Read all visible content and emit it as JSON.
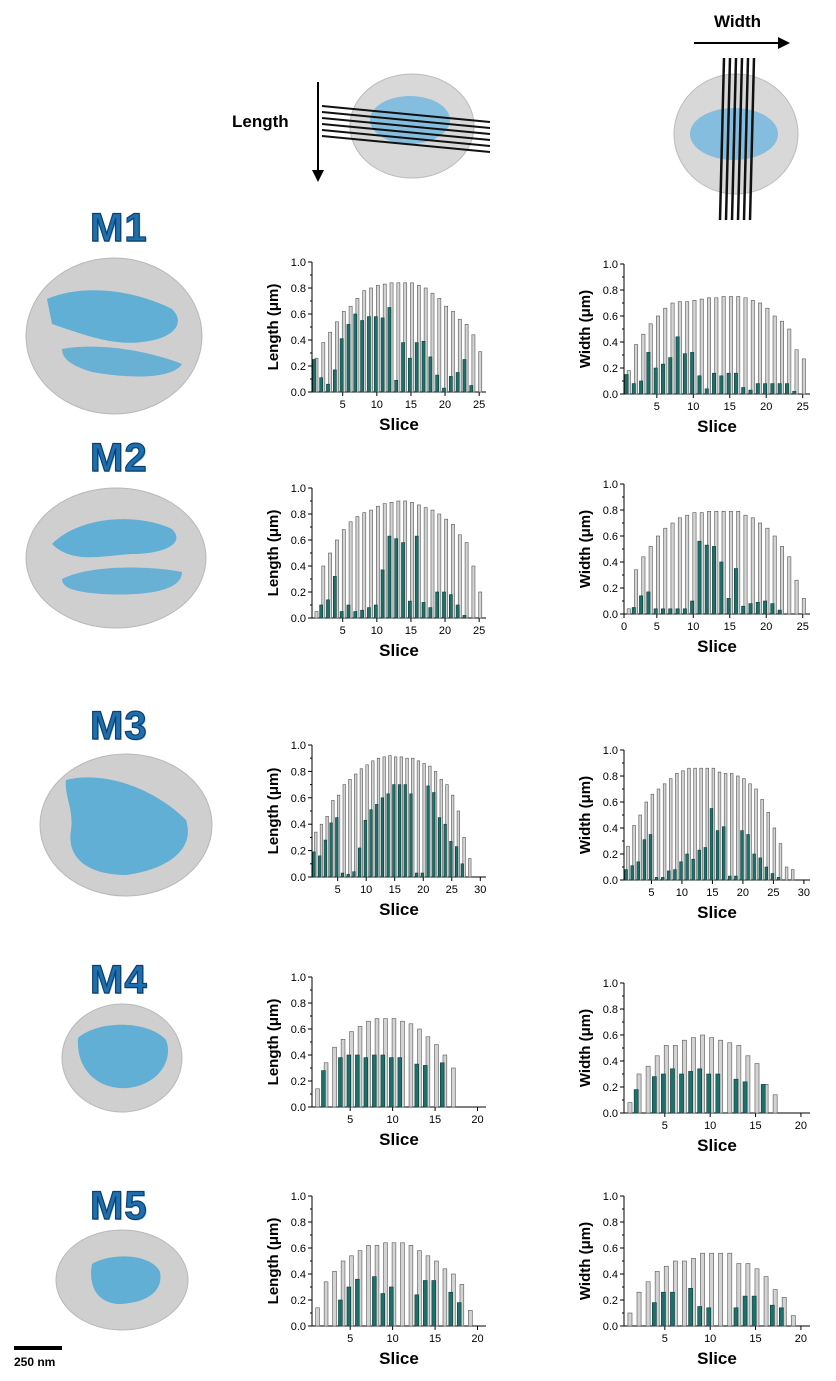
{
  "header": {
    "length_label": "Length",
    "width_label": "Width"
  },
  "rows": [
    {
      "label": "M1"
    },
    {
      "label": "M2"
    },
    {
      "label": "M3"
    },
    {
      "label": "M4"
    },
    {
      "label": "M5"
    }
  ],
  "scale_bar": {
    "label": "250 nm"
  },
  "colors": {
    "total_bar": "#d3d3d3",
    "blue_bar": "#1f6f6a",
    "cell": "#c8c8c8",
    "dna": "#4ea9d6"
  },
  "chart_data": [
    {
      "id": "M1-length",
      "type": "bar",
      "xlabel": "Slice",
      "ylabel": "Length (μm)",
      "ylim": [
        0,
        1.0
      ],
      "yticks": [
        "0.0",
        "0.2",
        "0.4",
        "0.6",
        "0.8",
        "1.0"
      ],
      "xticks": [
        5,
        10,
        15,
        20,
        25
      ],
      "xmax": 25,
      "series": [
        {
          "values": [
            0.26,
            0.38,
            0.46,
            0.54,
            0.62,
            0.66,
            0.72,
            0.78,
            0.8,
            0.82,
            0.83,
            0.84,
            0.84,
            0.84,
            0.84,
            0.82,
            0.8,
            0.76,
            0.72,
            0.66,
            0.62,
            0.56,
            0.52,
            0.44,
            0.31
          ]
        },
        {
          "values": [
            0.25,
            0.11,
            0.06,
            0.17,
            0.41,
            0.52,
            0.6,
            0.55,
            0.58,
            0.58,
            0.57,
            0.65,
            0.09,
            0.38,
            0.26,
            0.38,
            0.39,
            0.27,
            0.13,
            0.03,
            0.12,
            0.15,
            0.25,
            0.05,
            0
          ]
        }
      ]
    },
    {
      "id": "M1-width",
      "type": "bar",
      "xlabel": "Slice",
      "ylabel": "Width (μm)",
      "ylim": [
        0,
        1.0
      ],
      "yticks": [
        "0.0",
        "0.2",
        "0.4",
        "0.6",
        "0.8",
        "1.0"
      ],
      "xticks": [
        5,
        10,
        15,
        20,
        25
      ],
      "xmax": 25,
      "series": [
        {
          "values": [
            0.18,
            0.38,
            0.46,
            0.54,
            0.6,
            0.66,
            0.7,
            0.71,
            0.71,
            0.72,
            0.73,
            0.74,
            0.74,
            0.75,
            0.75,
            0.75,
            0.74,
            0.72,
            0.7,
            0.66,
            0.6,
            0.56,
            0.5,
            0.34,
            0.27
          ]
        },
        {
          "values": [
            0.15,
            0.08,
            0.1,
            0.32,
            0.2,
            0.23,
            0.28,
            0.44,
            0.31,
            0.32,
            0.14,
            0.04,
            0.16,
            0.14,
            0.16,
            0.16,
            0.05,
            0.03,
            0.08,
            0.08,
            0.08,
            0.08,
            0.08,
            0.02,
            0
          ]
        }
      ]
    },
    {
      "id": "M2-length",
      "type": "bar",
      "xlabel": "Slice",
      "ylabel": "Length (μm)",
      "ylim": [
        0,
        1.0
      ],
      "yticks": [
        "0.0",
        "0.2",
        "0.4",
        "0.6",
        "0.8",
        "1.0"
      ],
      "xticks": [
        5,
        10,
        15,
        20,
        25
      ],
      "xmax": 25,
      "series": [
        {
          "values": [
            0.05,
            0.4,
            0.5,
            0.6,
            0.68,
            0.74,
            0.78,
            0.81,
            0.83,
            0.86,
            0.88,
            0.89,
            0.9,
            0.9,
            0.89,
            0.87,
            0.85,
            0.83,
            0.8,
            0.76,
            0.72,
            0.64,
            0.58,
            0.4,
            0.2
          ]
        },
        {
          "values": [
            0,
            0.1,
            0.14,
            0.32,
            0.05,
            0.1,
            0.05,
            0.06,
            0.08,
            0.1,
            0.37,
            0.63,
            0.61,
            0.58,
            0.13,
            0.63,
            0.12,
            0.08,
            0.2,
            0.2,
            0.18,
            0.1,
            0.02,
            0,
            0
          ]
        }
      ]
    },
    {
      "id": "M2-width",
      "type": "bar",
      "xlabel": "Slice",
      "ylabel": "Width (μm)",
      "ylim": [
        0,
        1.0
      ],
      "yticks": [
        "0.0",
        "0.2",
        "0.4",
        "0.6",
        "0.8",
        "1.0"
      ],
      "xticks": [
        0,
        5,
        10,
        15,
        20,
        25
      ],
      "xmax": 25,
      "series": [
        {
          "values": [
            0.04,
            0.34,
            0.44,
            0.52,
            0.6,
            0.66,
            0.7,
            0.74,
            0.76,
            0.78,
            0.78,
            0.79,
            0.79,
            0.79,
            0.79,
            0.79,
            0.76,
            0.74,
            0.7,
            0.66,
            0.6,
            0.52,
            0.44,
            0.26,
            0.12
          ]
        },
        {
          "values": [
            0,
            0.05,
            0.14,
            0.17,
            0.04,
            0.04,
            0.04,
            0.04,
            0.04,
            0.1,
            0.56,
            0.53,
            0.52,
            0.4,
            0.12,
            0.35,
            0.06,
            0.08,
            0.09,
            0.1,
            0.08,
            0.03,
            0,
            0,
            0
          ]
        }
      ]
    },
    {
      "id": "M3-length",
      "type": "bar",
      "xlabel": "Slice",
      "ylabel": "Length (μm)",
      "ylim": [
        0,
        1.0
      ],
      "yticks": [
        "0.0",
        "0.2",
        "0.4",
        "0.6",
        "0.8",
        "1.0"
      ],
      "xticks": [
        5,
        10,
        15,
        20,
        25,
        30
      ],
      "xmax": 30,
      "series": [
        {
          "values": [
            0.34,
            0.4,
            0.46,
            0.58,
            0.62,
            0.7,
            0.74,
            0.78,
            0.82,
            0.85,
            0.88,
            0.9,
            0.91,
            0.92,
            0.91,
            0.91,
            0.9,
            0.9,
            0.88,
            0.86,
            0.84,
            0.8,
            0.74,
            0.7,
            0.62,
            0.5,
            0.3,
            0.14
          ]
        },
        {
          "values": [
            0.19,
            0.16,
            0.28,
            0.41,
            0.45,
            0.03,
            0.02,
            0.04,
            0.22,
            0.43,
            0.51,
            0.55,
            0.6,
            0.63,
            0.7,
            0.7,
            0.7,
            0.63,
            0.03,
            0.03,
            0.69,
            0.64,
            0.45,
            0.4,
            0.27,
            0.23,
            0.1,
            0
          ]
        }
      ]
    },
    {
      "id": "M3-width",
      "type": "bar",
      "xlabel": "Slice",
      "ylabel": "Width (μm)",
      "ylim": [
        0,
        1.0
      ],
      "yticks": [
        "0.0",
        "0.2",
        "0.4",
        "0.6",
        "0.8",
        "1.0"
      ],
      "xticks": [
        5,
        10,
        15,
        20,
        25,
        30
      ],
      "xmax": 30,
      "series": [
        {
          "values": [
            0.26,
            0.42,
            0.5,
            0.6,
            0.66,
            0.7,
            0.74,
            0.78,
            0.82,
            0.84,
            0.86,
            0.86,
            0.86,
            0.86,
            0.86,
            0.83,
            0.82,
            0.82,
            0.8,
            0.78,
            0.74,
            0.7,
            0.62,
            0.52,
            0.4,
            0.28,
            0.1,
            0.08
          ]
        },
        {
          "values": [
            0.08,
            0.11,
            0.14,
            0.31,
            0.35,
            0.02,
            0.02,
            0.07,
            0.08,
            0.14,
            0.2,
            0.16,
            0.23,
            0.25,
            0.55,
            0.38,
            0.41,
            0.03,
            0.03,
            0.38,
            0.35,
            0.2,
            0.17,
            0.1,
            0.05,
            0.02,
            0,
            0
          ]
        }
      ]
    },
    {
      "id": "M4-length",
      "type": "bar",
      "xlabel": "Slice",
      "ylabel": "Length (μm)",
      "ylim": [
        0,
        1.0
      ],
      "yticks": [
        "0.0",
        "0.2",
        "0.4",
        "0.6",
        "0.8",
        "1.0"
      ],
      "xticks": [
        5,
        10,
        15,
        20
      ],
      "xmax": 20,
      "series": [
        {
          "values": [
            0.14,
            0.34,
            0.46,
            0.52,
            0.58,
            0.62,
            0.66,
            0.68,
            0.68,
            0.68,
            0.66,
            0.64,
            0.6,
            0.54,
            0.48,
            0.4,
            0.3
          ]
        },
        {
          "values": [
            0,
            0.28,
            0,
            0.38,
            0.4,
            0.4,
            0.38,
            0.4,
            0.4,
            0.38,
            0.38,
            0,
            0.33,
            0.32,
            0,
            0.34,
            0
          ]
        }
      ]
    },
    {
      "id": "M4-width",
      "type": "bar",
      "xlabel": "Slice",
      "ylabel": "Width (μm)",
      "ylim": [
        0,
        1.0
      ],
      "yticks": [
        "0.0",
        "0.2",
        "0.4",
        "0.6",
        "0.8",
        "1.0"
      ],
      "xticks": [
        5,
        10,
        15,
        20
      ],
      "xmax": 20,
      "series": [
        {
          "values": [
            0.08,
            0.3,
            0.36,
            0.44,
            0.52,
            0.52,
            0.56,
            0.58,
            0.6,
            0.58,
            0.56,
            0.54,
            0.52,
            0.44,
            0.38,
            0.22,
            0.14
          ]
        },
        {
          "values": [
            0,
            0.18,
            0,
            0.28,
            0.3,
            0.34,
            0.3,
            0.32,
            0.34,
            0.3,
            0.3,
            0,
            0.26,
            0.24,
            0,
            0.22,
            0
          ]
        }
      ]
    },
    {
      "id": "M5-length",
      "type": "bar",
      "xlabel": "Slice",
      "ylabel": "Length (μm)",
      "ylim": [
        0,
        1.0
      ],
      "yticks": [
        "0.0",
        "0.2",
        "0.4",
        "0.6",
        "0.8",
        "1.0"
      ],
      "xticks": [
        5,
        10,
        15,
        20
      ],
      "xmax": 20,
      "series": [
        {
          "values": [
            0.14,
            0.34,
            0.42,
            0.5,
            0.54,
            0.58,
            0.62,
            0.62,
            0.64,
            0.64,
            0.64,
            0.62,
            0.58,
            0.54,
            0.5,
            0.44,
            0.4,
            0.32,
            0.12
          ]
        },
        {
          "values": [
            0,
            0,
            0,
            0.2,
            0.3,
            0.36,
            0,
            0.38,
            0.25,
            0.3,
            0,
            0,
            0.24,
            0.35,
            0.35,
            0,
            0.26,
            0.18,
            0
          ]
        }
      ]
    },
    {
      "id": "M5-width",
      "type": "bar",
      "xlabel": "Slice",
      "ylabel": "Width (μm)",
      "ylim": [
        0,
        1.0
      ],
      "yticks": [
        "0.0",
        "0.2",
        "0.4",
        "0.6",
        "0.8",
        "1.0"
      ],
      "xticks": [
        5,
        10,
        15,
        20
      ],
      "xmax": 20,
      "series": [
        {
          "values": [
            0.1,
            0.26,
            0.34,
            0.42,
            0.46,
            0.5,
            0.5,
            0.52,
            0.56,
            0.56,
            0.56,
            0.56,
            0.48,
            0.48,
            0.44,
            0.38,
            0.28,
            0.22,
            0.08
          ]
        },
        {
          "values": [
            0,
            0,
            0,
            0.18,
            0.26,
            0.26,
            0,
            0.29,
            0.15,
            0.14,
            0,
            0,
            0.14,
            0.23,
            0.23,
            0,
            0.16,
            0.14,
            0
          ]
        }
      ]
    }
  ]
}
